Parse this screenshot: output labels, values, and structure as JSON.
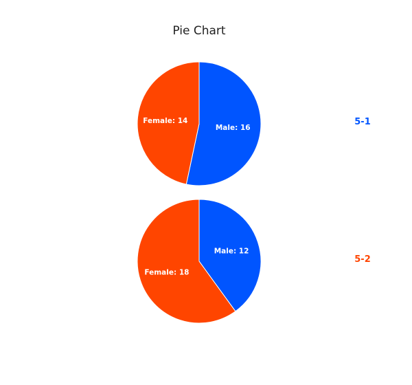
{
  "chart_data": {
    "type": "pie",
    "title": "Pie Chart",
    "legend": "right",
    "pies": [
      {
        "label": "5-1",
        "label_color": "#0055ff",
        "slices": [
          {
            "name": "Male",
            "value": 16,
            "color": "#0055ff"
          },
          {
            "name": "Female",
            "value": 14,
            "color": "#ff4500"
          }
        ]
      },
      {
        "label": "5-2",
        "label_color": "#ff4500",
        "slices": [
          {
            "name": "Male",
            "value": 12,
            "color": "#0055ff"
          },
          {
            "name": "Female",
            "value": 18,
            "color": "#ff4500"
          }
        ]
      }
    ]
  }
}
